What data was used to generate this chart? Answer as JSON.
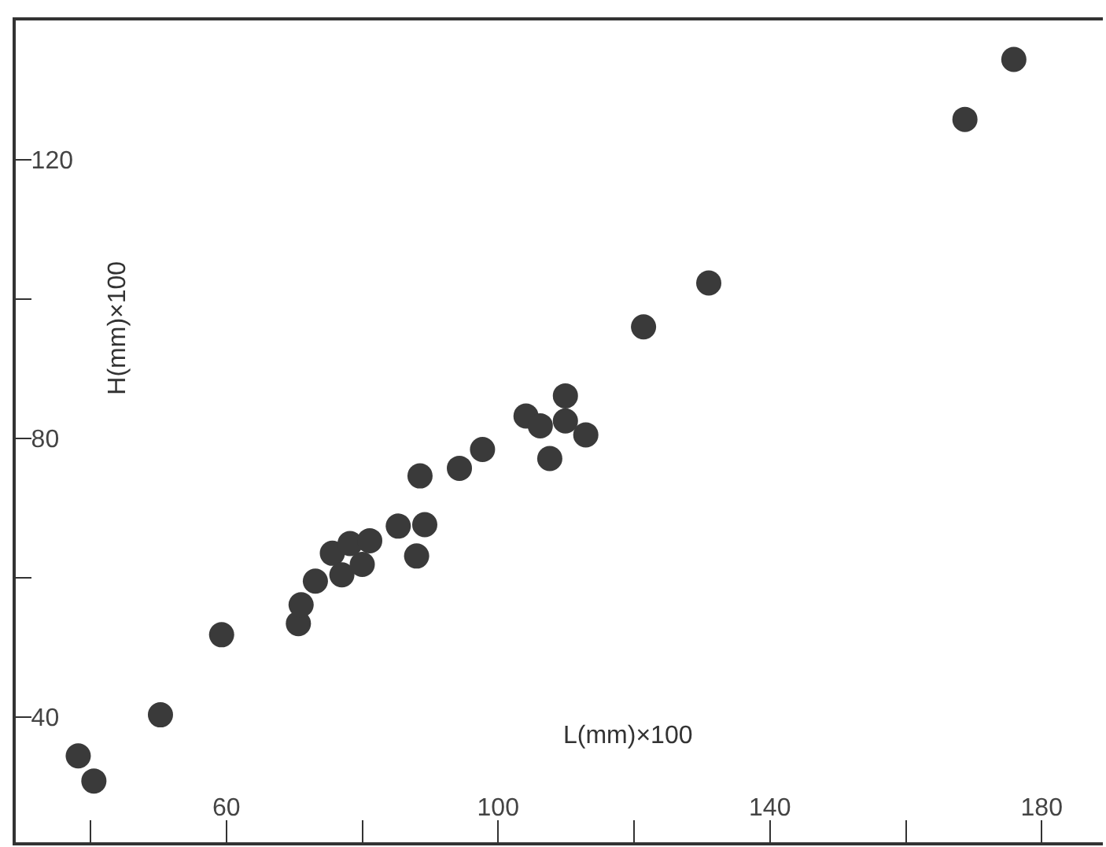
{
  "chart_data": {
    "type": "scatter",
    "xlabel": "L(mm)×100",
    "ylabel": "H(mm)×100",
    "x": [
      38.2,
      40.5,
      50.3,
      59.3,
      70.6,
      71.0,
      73.1,
      75.6,
      77.0,
      78.2,
      80.0,
      81.1,
      85.3,
      88.0,
      89.2,
      88.5,
      94.3,
      97.7,
      104.1,
      106.2,
      109.9,
      109.9,
      107.6,
      112.9,
      121.4,
      131.0,
      168.7,
      175.9
    ],
    "values": [
      34.4,
      30.8,
      40.3,
      51.8,
      53.4,
      56.1,
      59.5,
      63.5,
      60.4,
      64.9,
      61.9,
      65.3,
      67.4,
      63.1,
      67.6,
      74.6,
      75.7,
      78.4,
      83.2,
      81.8,
      86.1,
      82.5,
      77.1,
      80.5,
      96.0,
      102.3,
      125.8,
      134.4
    ],
    "color": "#3a3a3a",
    "marker": "circle",
    "xlim": [
      29,
      189
    ],
    "ylim": [
      22,
      140
    ],
    "xticks": [
      {
        "value": 40,
        "label": null
      },
      60,
      {
        "value": 80,
        "label": null
      },
      100,
      {
        "value": 120,
        "label": null
      },
      140,
      {
        "value": 160,
        "label": null
      },
      180
    ],
    "yticks": [
      40,
      {
        "value": 60,
        "label": null
      },
      80,
      {
        "value": 100,
        "label": null
      },
      120
    ]
  }
}
